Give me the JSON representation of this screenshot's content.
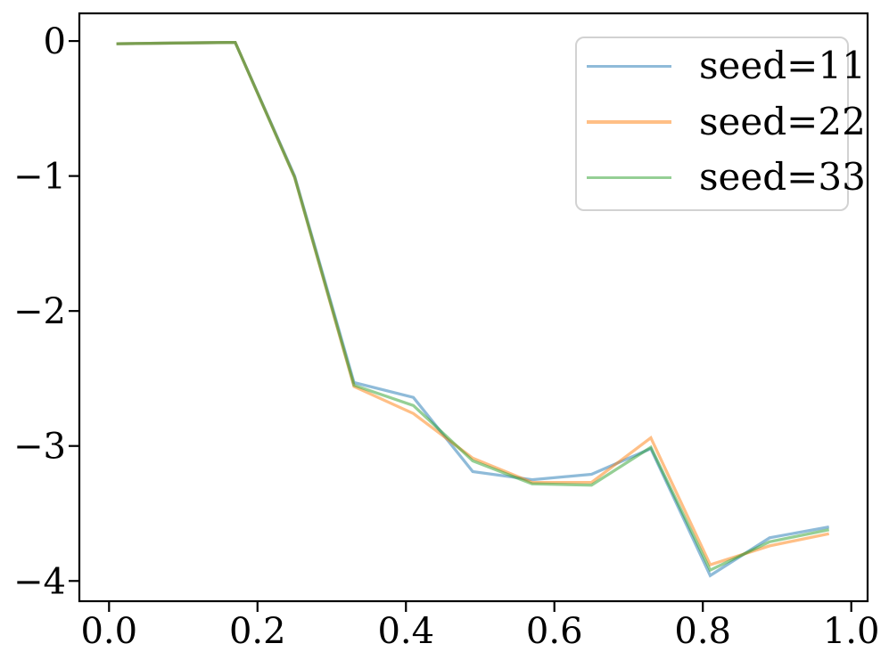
{
  "figure": {
    "background_color": "#ffffff",
    "axis_color": "#000000",
    "legend_border_color": "#d2d2d2"
  },
  "chart_data": {
    "type": "line",
    "title": "",
    "xlabel": "",
    "ylabel": "",
    "grid": false,
    "x": [
      0.01,
      0.09,
      0.17,
      0.25,
      0.33,
      0.41,
      0.49,
      0.57,
      0.65,
      0.73,
      0.81,
      0.89,
      0.97
    ],
    "series": [
      {
        "name": "seed=11",
        "color": "#1f77b4",
        "alpha": 0.5,
        "values": [
          -0.02,
          -0.015,
          -0.01,
          -1.0,
          -2.53,
          -2.64,
          -3.19,
          -3.25,
          -3.21,
          -3.02,
          -3.96,
          -3.68,
          -3.6
        ]
      },
      {
        "name": "seed=22",
        "color": "#ff7f0e",
        "alpha": 0.5,
        "values": [
          -0.02,
          -0.015,
          -0.01,
          -1.01,
          -2.56,
          -2.76,
          -3.09,
          -3.27,
          -3.27,
          -2.94,
          -3.88,
          -3.74,
          -3.65
        ]
      },
      {
        "name": "seed=33",
        "color": "#2ca02c",
        "alpha": 0.5,
        "values": [
          -0.02,
          -0.015,
          -0.01,
          -1.01,
          -2.55,
          -2.7,
          -3.11,
          -3.28,
          -3.29,
          -3.01,
          -3.92,
          -3.71,
          -3.62
        ]
      }
    ],
    "xlim": [
      -0.04,
      1.022
    ],
    "ylim": [
      -4.15,
      0.205
    ],
    "xticks": {
      "values": [
        0.0,
        0.2,
        0.4,
        0.6,
        0.8,
        1.0
      ],
      "labels": [
        "0.0",
        "0.2",
        "0.4",
        "0.6",
        "0.8",
        "1.0"
      ]
    },
    "yticks": {
      "values": [
        0,
        -1,
        -2,
        -3,
        -4
      ],
      "labels": [
        "0",
        "−1",
        "−2",
        "−3",
        "−4"
      ]
    },
    "legend": {
      "position": "upper right",
      "entries": [
        "seed=11",
        "seed=22",
        "seed=33"
      ]
    }
  }
}
